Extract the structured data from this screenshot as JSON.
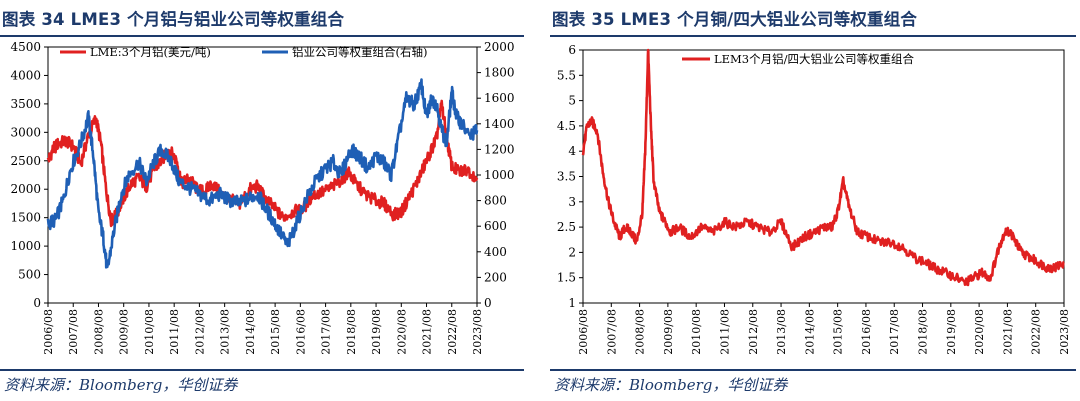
{
  "source_note": "资料来源：Bloomberg，华创证券",
  "chart_data": [
    {
      "type": "line",
      "title": "图表 34  LME3 个月铝与铝业公司等权重组合",
      "x_tick_labels": [
        "2006/08",
        "2007/08",
        "2008/08",
        "2009/08",
        "2010/08",
        "2011/08",
        "2012/08",
        "2013/08",
        "2014/08",
        "2015/08",
        "2016/08",
        "2017/08",
        "2018/08",
        "2019/08",
        "2020/08",
        "2021/08",
        "2022/08",
        "2023/08"
      ],
      "y_left_ticks": [
        "0",
        "500",
        "1000",
        "1500",
        "2000",
        "2500",
        "3000",
        "3500",
        "4000",
        "4500"
      ],
      "y_right_ticks": [
        "0",
        "200",
        "400",
        "600",
        "800",
        "1000",
        "1200",
        "1400",
        "1600",
        "1800",
        "2000"
      ],
      "ylim_left": [
        0,
        4500
      ],
      "ylim_right": [
        0,
        2000
      ],
      "legend_position": "top",
      "series": [
        {
          "name": "LME:3个月铝(美元/吨)",
          "axis": "left",
          "color": "#e02020",
          "x": [
            2006.6,
            2006.8,
            2007.0,
            2007.3,
            2007.6,
            2007.9,
            2008.2,
            2008.5,
            2008.7,
            2008.9,
            2009.1,
            2009.3,
            2009.6,
            2009.9,
            2010.2,
            2010.5,
            2010.8,
            2011.1,
            2011.4,
            2011.7,
            2011.9,
            2012.2,
            2012.5,
            2012.8,
            2013.1,
            2013.5,
            2013.9,
            2014.2,
            2014.6,
            2014.9,
            2015.2,
            2015.6,
            2015.9,
            2016.3,
            2016.7,
            2017.1,
            2017.5,
            2017.9,
            2018.3,
            2018.5,
            2018.8,
            2019.2,
            2019.6,
            2019.9,
            2020.3,
            2020.6,
            2020.9,
            2021.2,
            2021.5,
            2021.8,
            2022.0,
            2022.2,
            2022.4,
            2022.6,
            2022.9,
            2023.2,
            2023.6
          ],
          "y": [
            2500,
            2700,
            2800,
            2850,
            2750,
            2450,
            2950,
            3250,
            2800,
            2000,
            1450,
            1550,
            1850,
            2100,
            2200,
            2050,
            2350,
            2500,
            2700,
            2500,
            2100,
            2200,
            2000,
            1950,
            2100,
            1900,
            1800,
            1750,
            2000,
            2050,
            1850,
            1650,
            1500,
            1600,
            1650,
            1900,
            1950,
            2050,
            2200,
            2300,
            2100,
            1900,
            1800,
            1750,
            1550,
            1600,
            1850,
            2100,
            2400,
            2700,
            2900,
            3500,
            2900,
            2400,
            2300,
            2350,
            2200
          ]
        },
        {
          "name": "铝业公司等权重组合(右轴)",
          "axis": "right",
          "color": "#1f5fb5",
          "x": [
            2006.6,
            2006.9,
            2007.2,
            2007.5,
            2007.9,
            2008.2,
            2008.4,
            2008.6,
            2008.8,
            2008.95,
            2009.2,
            2009.5,
            2009.8,
            2010.2,
            2010.5,
            2010.8,
            2011.1,
            2011.5,
            2011.8,
            2012.2,
            2012.6,
            2013.0,
            2013.4,
            2013.8,
            2014.2,
            2014.6,
            2014.9,
            2015.2,
            2015.5,
            2015.8,
            2016.1,
            2016.4,
            2016.8,
            2017.2,
            2017.6,
            2017.9,
            2018.2,
            2018.6,
            2018.9,
            2019.3,
            2019.6,
            2019.9,
            2020.2,
            2020.5,
            2020.8,
            2021.1,
            2021.4,
            2021.6,
            2021.8,
            2022.0,
            2022.2,
            2022.4,
            2022.6,
            2022.8,
            2023.0,
            2023.3,
            2023.6
          ],
          "y": [
            620,
            650,
            800,
            1050,
            1250,
            1450,
            1150,
            700,
            500,
            250,
            550,
            850,
            1000,
            1100,
            950,
            1100,
            1200,
            1100,
            950,
            900,
            850,
            800,
            850,
            800,
            780,
            820,
            850,
            750,
            650,
            550,
            450,
            600,
            800,
            950,
            1050,
            1100,
            1000,
            1200,
            1150,
            1050,
            1150,
            1100,
            1000,
            1300,
            1600,
            1550,
            1700,
            1450,
            1600,
            1550,
            1350,
            1250,
            1650,
            1450,
            1400,
            1300,
            1350
          ]
        }
      ]
    },
    {
      "type": "line",
      "title": "图表 35  LME3 个月铜/四大铝业公司等权重组合",
      "x_tick_labels": [
        "2006/08",
        "2007/08",
        "2008/08",
        "2009/08",
        "2010/08",
        "2011/08",
        "2012/08",
        "2013/08",
        "2014/08",
        "2015/08",
        "2016/08",
        "2017/08",
        "2018/08",
        "2019/08",
        "2020/08",
        "2021/08",
        "2022/08",
        "2023/08"
      ],
      "y_ticks": [
        "1",
        "1.5",
        "2",
        "2.5",
        "3",
        "3.5",
        "4",
        "4.5",
        "5",
        "5.5",
        "6"
      ],
      "ylim": [
        1,
        6
      ],
      "legend_position": "top",
      "series": [
        {
          "name": "LEM3个月铝/四大铝业公司等权重组合",
          "color": "#e02020",
          "x": [
            2006.6,
            2006.75,
            2006.9,
            2007.1,
            2007.3,
            2007.5,
            2007.7,
            2007.9,
            2008.1,
            2008.3,
            2008.5,
            2008.7,
            2008.8,
            2008.9,
            2009.0,
            2009.1,
            2009.3,
            2009.5,
            2009.7,
            2010.0,
            2010.4,
            2010.8,
            2011.2,
            2011.6,
            2012.0,
            2012.4,
            2012.8,
            2013.2,
            2013.6,
            2014.0,
            2014.4,
            2014.8,
            2015.1,
            2015.4,
            2015.6,
            2015.8,
            2016.0,
            2016.3,
            2016.7,
            2017.1,
            2017.5,
            2017.9,
            2018.3,
            2018.7,
            2019.0,
            2019.4,
            2019.8,
            2020.1,
            2020.4,
            2020.7,
            2021.0,
            2021.3,
            2021.5,
            2021.7,
            2021.9,
            2022.1,
            2022.4,
            2022.7,
            2023.0,
            2023.3,
            2023.6
          ],
          "y": [
            4.0,
            4.5,
            4.6,
            4.4,
            3.6,
            3.0,
            2.6,
            2.3,
            2.5,
            2.4,
            2.2,
            2.8,
            4.0,
            6.0,
            4.5,
            3.4,
            2.8,
            2.6,
            2.4,
            2.5,
            2.3,
            2.5,
            2.4,
            2.6,
            2.5,
            2.6,
            2.5,
            2.4,
            2.6,
            2.1,
            2.3,
            2.4,
            2.5,
            2.5,
            2.8,
            3.4,
            2.9,
            2.4,
            2.3,
            2.2,
            2.2,
            2.1,
            1.9,
            1.8,
            1.7,
            1.6,
            1.5,
            1.4,
            1.5,
            1.6,
            1.5,
            2.1,
            2.4,
            2.4,
            2.2,
            2.0,
            1.9,
            1.8,
            1.7,
            1.7,
            1.8
          ]
        }
      ]
    }
  ]
}
